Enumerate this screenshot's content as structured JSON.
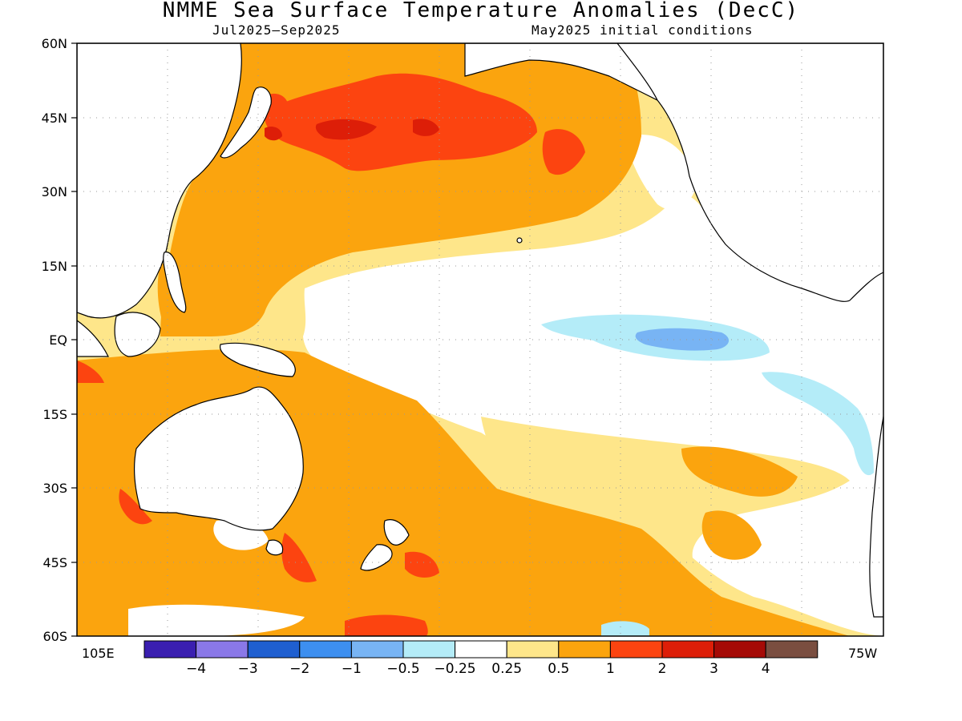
{
  "header": {
    "title": "NMME Sea Surface Temperature Anomalies (DecC)",
    "period": "Jul2025–Sep2025",
    "init": "May2025 initial conditions"
  },
  "map": {
    "lat_labels": [
      "60N",
      "45N",
      "30N",
      "15N",
      "EQ",
      "15S",
      "30S",
      "45S",
      "60S"
    ],
    "lon_left": "105E",
    "lon_right": "75W"
  },
  "colorbar": {
    "labels": [
      "−4",
      "−3",
      "−2",
      "−1",
      "−0.5",
      "−0.25",
      "0.25",
      "0.5",
      "1",
      "2",
      "3",
      "4"
    ],
    "colors": [
      "#3a1fb0",
      "#8a78e8",
      "#1f5fd0",
      "#3d8ff0",
      "#78b4f4",
      "#b4ecf8",
      "#ffffff",
      "#fee68a",
      "#fba40e",
      "#fc4410",
      "#dd1e08",
      "#a50a06",
      "#7a4e40"
    ]
  },
  "legend_colors": {
    "land": "#ffffff",
    "coast": "#000000",
    "grid": "#9a9a9a"
  }
}
